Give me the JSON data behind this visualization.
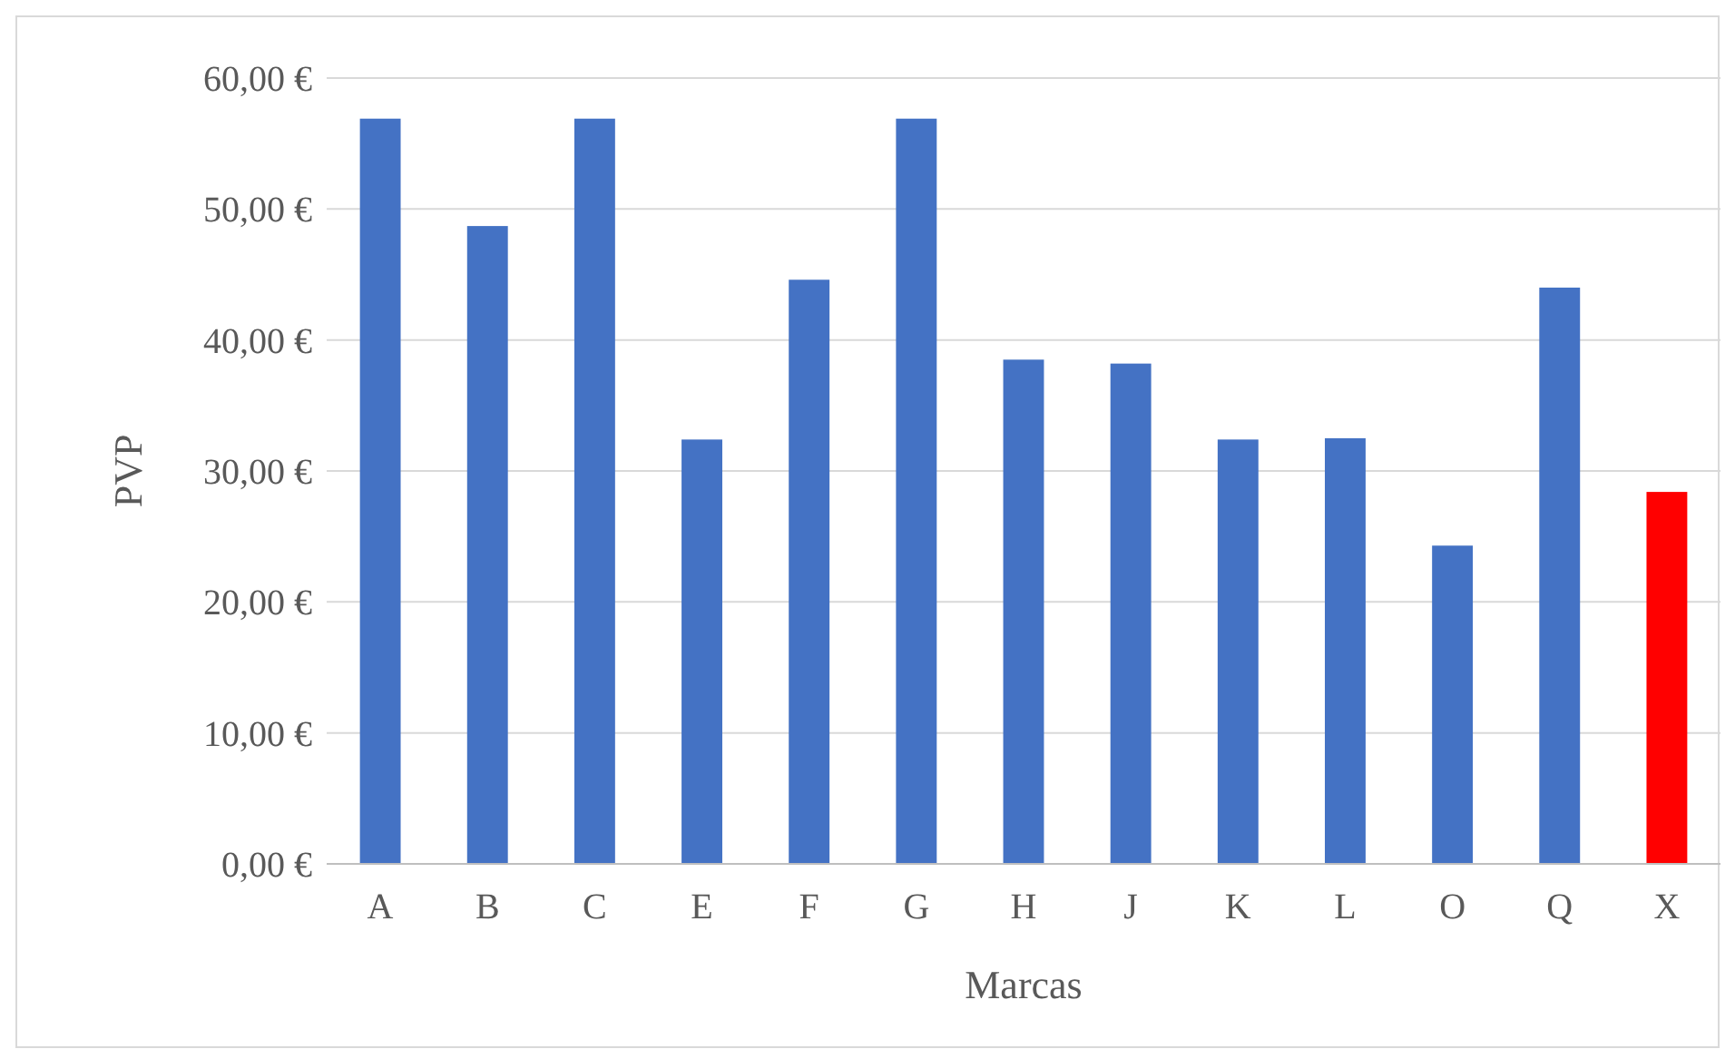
{
  "chart_data": {
    "type": "bar",
    "xlabel": "Marcas",
    "ylabel": "PVP",
    "categories": [
      "A",
      "B",
      "C",
      "E",
      "F",
      "G",
      "H",
      "J",
      "K",
      "L",
      "O",
      "Q",
      "X"
    ],
    "values": [
      56.9,
      48.7,
      56.9,
      32.4,
      44.6,
      56.9,
      38.5,
      38.2,
      32.4,
      32.5,
      24.3,
      44.0,
      28.4
    ],
    "colors": [
      "#4472c4",
      "#4472c4",
      "#4472c4",
      "#4472c4",
      "#4472c4",
      "#4472c4",
      "#4472c4",
      "#4472c4",
      "#4472c4",
      "#4472c4",
      "#4472c4",
      "#4472c4",
      "#ff0000"
    ],
    "ylim": [
      0,
      60
    ],
    "yticks": [
      {
        "value": 0,
        "label": "0,00 €"
      },
      {
        "value": 10,
        "label": "10,00 €"
      },
      {
        "value": 20,
        "label": "20,00 €"
      },
      {
        "value": 30,
        "label": "30,00 €"
      },
      {
        "value": 40,
        "label": "40,00 €"
      },
      {
        "value": 50,
        "label": "50,00 €"
      },
      {
        "value": 60,
        "label": "60,00 €"
      }
    ],
    "grid": "y"
  }
}
